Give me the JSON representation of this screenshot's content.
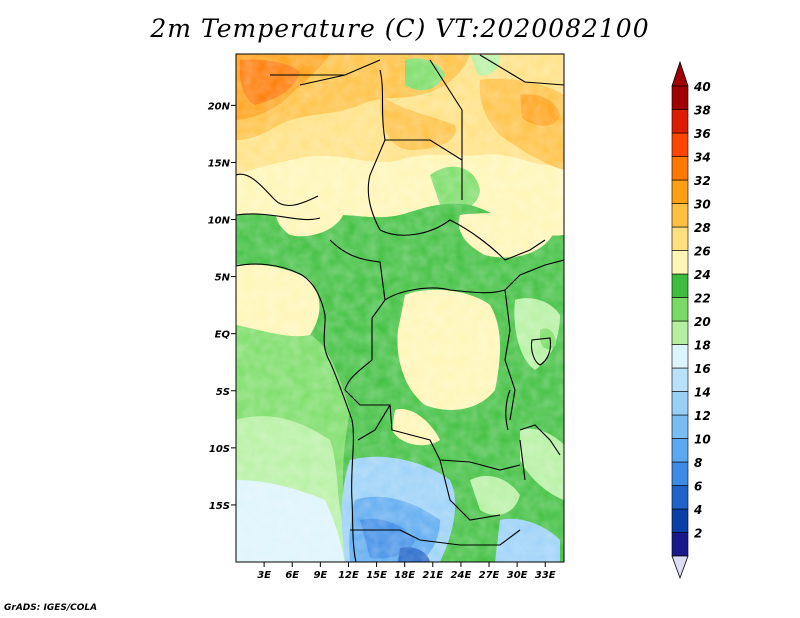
{
  "title": "2m Temperature (C) VT:2020082100",
  "credit": "GrADS: IGES/COLA",
  "map": {
    "lat_labels": [
      "20N",
      "15N",
      "10N",
      "5N",
      "EQ",
      "5S",
      "10S",
      "15S"
    ],
    "lon_labels": [
      "3E",
      "6E",
      "9E",
      "12E",
      "15E",
      "18E",
      "21E",
      "24E",
      "27E",
      "30E",
      "33E"
    ],
    "lat_range": [
      -20,
      24.5
    ],
    "lon_range": [
      0,
      35
    ]
  },
  "colorbar": {
    "levels": [
      "2",
      "4",
      "6",
      "8",
      "10",
      "12",
      "14",
      "16",
      "18",
      "20",
      "22",
      "24",
      "26",
      "28",
      "30",
      "32",
      "34",
      "36",
      "38",
      "40"
    ],
    "colors": [
      "#1a1a8c",
      "#0a3fa8",
      "#1e64c8",
      "#3c8ce6",
      "#5aa8f0",
      "#78bef5",
      "#98d0f8",
      "#b8e2fa",
      "#dcf4fc",
      "#b4f0a0",
      "#78dc64",
      "#3cbe3c",
      "#fff5b4",
      "#ffe080",
      "#ffc040",
      "#ffa014",
      "#ff7800",
      "#ff4600",
      "#dc1e00",
      "#a00000"
    ],
    "under_color": "#dcdcf5",
    "over_color": "#a00000"
  }
}
